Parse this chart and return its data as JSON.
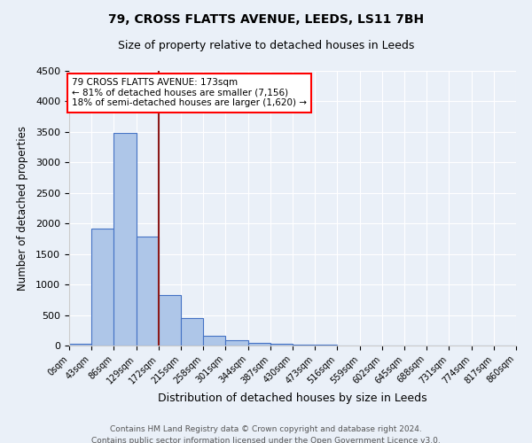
{
  "title1": "79, CROSS FLATTS AVENUE, LEEDS, LS11 7BH",
  "title2": "Size of property relative to detached houses in Leeds",
  "xlabel": "Distribution of detached houses by size in Leeds",
  "ylabel": "Number of detached properties",
  "footnote1": "Contains HM Land Registry data © Crown copyright and database right 2024.",
  "footnote2": "Contains public sector information licensed under the Open Government Licence v3.0.",
  "bin_edges": [
    0,
    43,
    86,
    129,
    172,
    215,
    258,
    301,
    344,
    387,
    430,
    473,
    516,
    559,
    602,
    645,
    688,
    731,
    774,
    817,
    860
  ],
  "bin_counts": [
    30,
    1910,
    3490,
    1780,
    830,
    450,
    155,
    90,
    50,
    30,
    20,
    10,
    0,
    0,
    0,
    0,
    0,
    0,
    0,
    0
  ],
  "property_size": 173,
  "bar_fill_color": "#aec6e8",
  "bar_edge_color": "#4472c4",
  "vline_color": "#8b1a1a",
  "bg_color": "#eaf0f8",
  "annotation_text": "79 CROSS FLATTS AVENUE: 173sqm\n← 81% of detached houses are smaller (7,156)\n18% of semi-detached houses are larger (1,620) →",
  "annotation_box_color": "white",
  "annotation_border_color": "red",
  "ylim": [
    0,
    4500
  ],
  "yticks": [
    0,
    500,
    1000,
    1500,
    2000,
    2500,
    3000,
    3500,
    4000,
    4500
  ]
}
